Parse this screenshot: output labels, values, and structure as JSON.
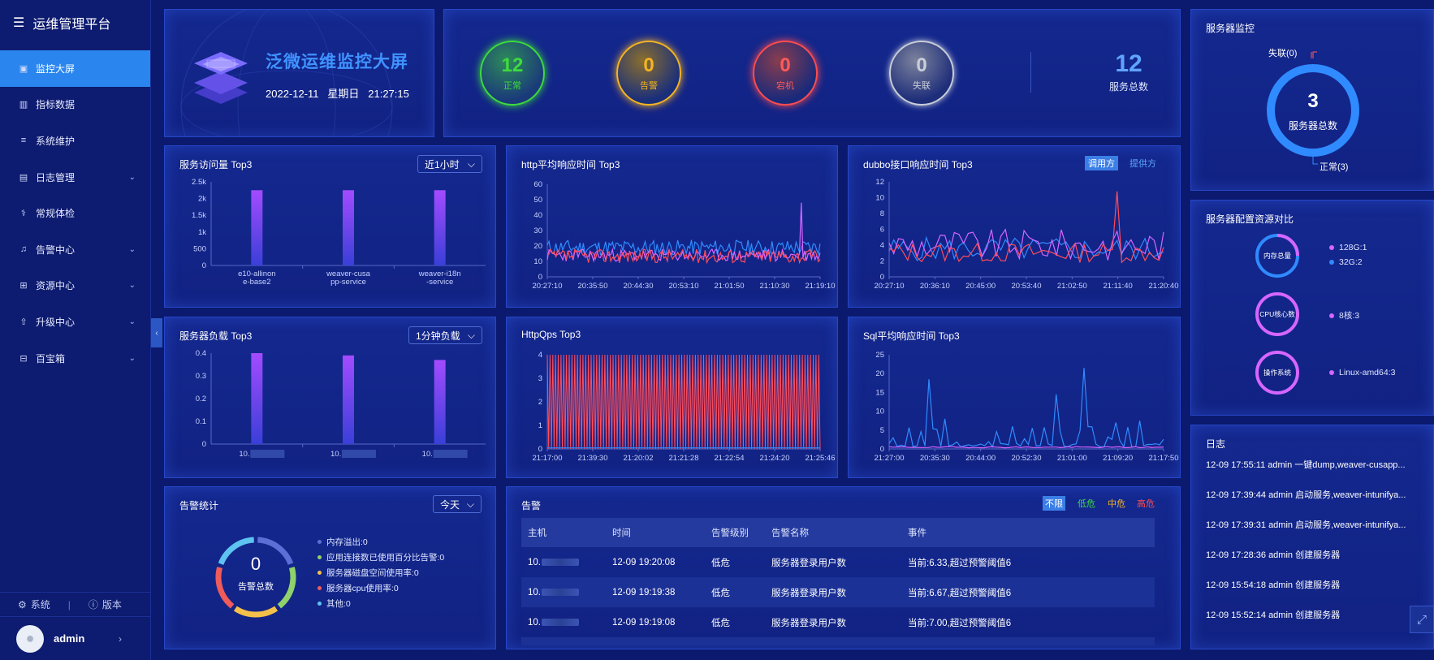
{
  "sidebar": {
    "brand": "运维管理平台",
    "items": [
      {
        "label": "监控大屏",
        "icon": "dashboard-icon",
        "active": true,
        "chevron": false
      },
      {
        "label": "指标数据",
        "icon": "bar-chart-icon",
        "active": false,
        "chevron": false
      },
      {
        "label": "系统维护",
        "icon": "sliders-icon",
        "active": false,
        "chevron": false
      },
      {
        "label": "日志管理",
        "icon": "document-icon",
        "active": false,
        "chevron": true
      },
      {
        "label": "常规体检",
        "icon": "stethoscope-icon",
        "active": false,
        "chevron": false
      },
      {
        "label": "告警中心",
        "icon": "bell-icon",
        "active": false,
        "chevron": true
      },
      {
        "label": "资源中心",
        "icon": "grid-icon",
        "active": false,
        "chevron": true
      },
      {
        "label": "升级中心",
        "icon": "upgrade-icon",
        "active": false,
        "chevron": true
      },
      {
        "label": "百宝箱",
        "icon": "toolbox-icon",
        "active": false,
        "chevron": true
      }
    ],
    "bottom": {
      "system": "系统",
      "version": "版本"
    },
    "user": "admin"
  },
  "header": {
    "title": "泛微运维监控大屏",
    "date": "2022-12-11",
    "weekday": "星期日",
    "time": "21:27:15"
  },
  "status": {
    "normal": {
      "value": "12",
      "label": "正常",
      "color": "#3ddc3d"
    },
    "warning": {
      "value": "0",
      "label": "告警",
      "color": "#f5b422"
    },
    "down": {
      "value": "0",
      "label": "宕机",
      "color": "#ff4d4d"
    },
    "lost": {
      "value": "0",
      "label": "失联",
      "color": "#c9ced8"
    },
    "total": {
      "value": "12",
      "label": "服务总数"
    }
  },
  "server_monitor": {
    "title": "服务器监控",
    "total": "3",
    "total_label": "服务器总数",
    "lost_label": "失联(0)",
    "normal_label": "正常(3)"
  },
  "resource_compare": {
    "title": "服务器配置资源对比",
    "rings": [
      {
        "label": "内存总量",
        "legend": [
          "128G:1",
          "32G:2"
        ],
        "legend_colors": [
          "#d666ff",
          "#2f8bff"
        ]
      },
      {
        "label": "CPU核心数",
        "legend": [
          "8核:3"
        ],
        "legend_colors": [
          "#d666ff"
        ]
      },
      {
        "label": "操作系统",
        "legend": [
          "Linux-amd64:3"
        ],
        "legend_colors": [
          "#d666ff"
        ]
      }
    ]
  },
  "log": {
    "title": "日志",
    "entries": [
      "12-09 17:55:11 admin 一键dump,weaver-cusapp...",
      "12-09 17:39:44 admin 启动服务,weaver-intunifya...",
      "12-09 17:39:31 admin 启动服务,weaver-intunifya...",
      "12-09 17:28:36 admin 创建服务器",
      "12-09 15:54:18 admin 创建服务器",
      "12-09 15:52:14 admin 创建服务器"
    ]
  },
  "visit_chart": {
    "title": "服务访问量 Top3",
    "dropdown": "近1小时",
    "chart_data": {
      "type": "bar",
      "categories": [
        "e10-allinone-base2",
        "weaver-cusapp-service",
        "weaver-i18n-service"
      ],
      "category_lines": [
        [
          "e10-allinon",
          "e-base2"
        ],
        [
          "weaver-cusa",
          "pp-service"
        ],
        [
          "weaver-i18n",
          "-service"
        ]
      ],
      "values": [
        2250,
        2250,
        2250
      ],
      "yticks": [
        "0",
        "500",
        "1k",
        "1.5k",
        "2k",
        "2.5k"
      ],
      "ylim": [
        0,
        2500
      ]
    }
  },
  "load_chart": {
    "title": "服务器负载 Top3",
    "dropdown": "1分钟负载",
    "chart_data": {
      "type": "bar",
      "categories": [
        "10.",
        "10.",
        "10."
      ],
      "values": [
        0.4,
        0.39,
        0.37
      ],
      "yticks": [
        "0",
        "0.1",
        "0.2",
        "0.3",
        "0.4"
      ],
      "ylim": [
        0,
        0.4
      ]
    }
  },
  "http_chart": {
    "title": "http平均响应时间 Top3",
    "chart_data": {
      "type": "line",
      "xticks": [
        "20:27:10",
        "20:35:50",
        "20:44:30",
        "20:53:10",
        "21:01:50",
        "21:10:30",
        "21:19:10"
      ],
      "yticks": [
        "0",
        "10",
        "20",
        "30",
        "40",
        "50",
        "60"
      ],
      "ylim": [
        0,
        60
      ]
    }
  },
  "dubbo_chart": {
    "title": "dubbo接口响应时间 Top3",
    "tabs": [
      "调用方",
      "提供方"
    ],
    "chart_data": {
      "type": "line",
      "xticks": [
        "20:27:10",
        "20:36:10",
        "20:45:00",
        "20:53:40",
        "21:02:50",
        "21:11:40",
        "21:20:40"
      ],
      "yticks": [
        "0",
        "2",
        "4",
        "6",
        "8",
        "10",
        "12"
      ],
      "ylim": [
        0,
        12
      ]
    }
  },
  "qps_chart": {
    "title": "HttpQps Top3",
    "chart_data": {
      "type": "line",
      "xticks": [
        "21:17:00",
        "21:39:30",
        "21:20:02",
        "21:21:28",
        "21:22:54",
        "21:24:20",
        "21:25:46"
      ],
      "yticks": [
        "0",
        "1",
        "2",
        "3",
        "4"
      ],
      "ylim": [
        0,
        4
      ]
    }
  },
  "sql_chart": {
    "title": "Sql平均响应时间 Top3",
    "chart_data": {
      "type": "line",
      "xticks": [
        "21:27:00",
        "20:35:30",
        "20:44:00",
        "20:52:30",
        "21:01:00",
        "21:09:20",
        "21:17:50"
      ],
      "yticks": [
        "0",
        "5",
        "10",
        "15",
        "20",
        "25"
      ],
      "ylim": [
        0,
        25
      ]
    }
  },
  "alarm_stats": {
    "title": "告警统计",
    "dropdown": "今天",
    "total": "0",
    "total_label": "告警总数",
    "legend": [
      {
        "label": "内存溢出:0",
        "color": "#5b6fd6"
      },
      {
        "label": "应用连接数已使用百分比告警:0",
        "color": "#8fd16a"
      },
      {
        "label": "服务器磁盘空间使用率:0",
        "color": "#f5c04a"
      },
      {
        "label": "服务器cpu使用率:0",
        "color": "#ef5b5b"
      },
      {
        "label": "其他:0",
        "color": "#5ec3f0"
      }
    ]
  },
  "alarms": {
    "title": "告警",
    "filters": [
      "不限",
      "低危",
      "中危",
      "高危"
    ],
    "filter_colors": [
      "#ffffff",
      "#3ddc3d",
      "#f5b422",
      "#ff4d4d"
    ],
    "columns": [
      "主机",
      "时间",
      "告警级别",
      "告警名称",
      "事件"
    ],
    "rows": [
      {
        "host": "10.",
        "time": "12-09 19:20:08",
        "level": "低危",
        "name": "服务器登录用户数",
        "event": "当前:6.33,超过预警阈值6"
      },
      {
        "host": "10.",
        "time": "12-09 19:19:38",
        "level": "低危",
        "name": "服务器登录用户数",
        "event": "当前:6.67,超过预警阈值6"
      },
      {
        "host": "10.",
        "time": "12-09 19:19:08",
        "level": "低危",
        "name": "服务器登录用户数",
        "event": "当前:7.00,超过预警阈值6"
      }
    ]
  }
}
